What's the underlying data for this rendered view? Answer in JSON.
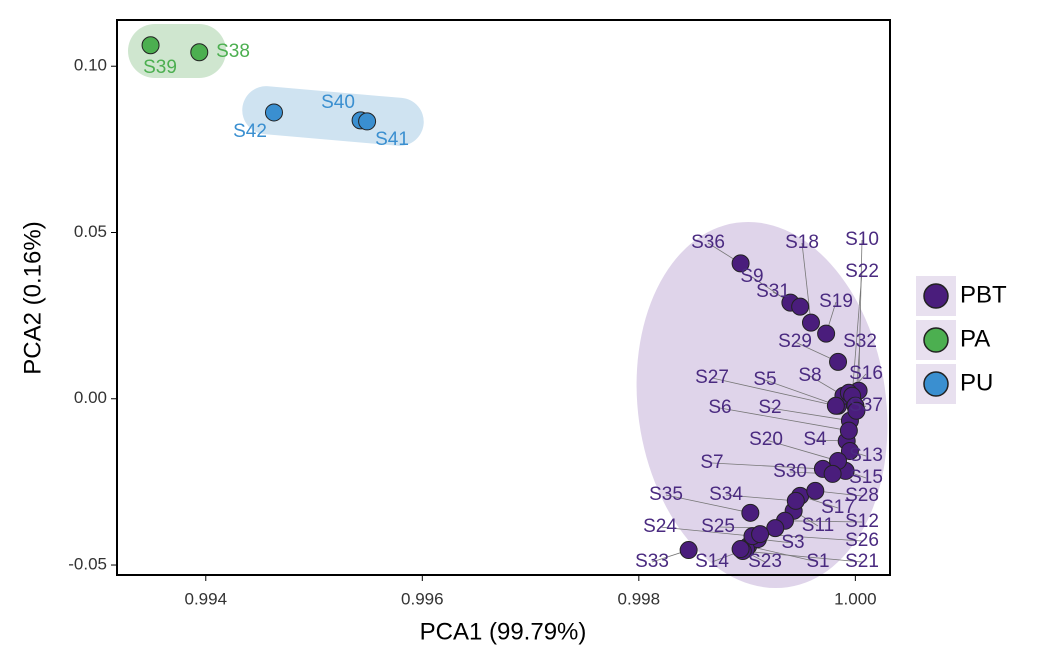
{
  "chart_data": {
    "type": "scatter",
    "x_label": "PCA1 (99.79%)",
    "y_label": "PCA2 (0.16%)",
    "xlim": [
      0.99318,
      1.00032
    ],
    "ylim": [
      -0.053,
      0.1139
    ],
    "xticks": [
      0.994,
      0.996,
      0.998,
      {
        "value": 1,
        "label": "1.000"
      }
    ],
    "yticks": [
      -0.05,
      {
        "value": 0,
        "label": "0.00"
      },
      0.05,
      {
        "value": 0.1,
        "label": "0.10"
      }
    ],
    "grid": false,
    "legend": "right",
    "series": [
      {
        "name": "PBT",
        "color": "#4a1d7c",
        "labels": [
          "S1",
          "S2",
          "S3",
          "S4",
          "S5",
          "S6",
          "S7",
          "S8",
          "S9",
          "S10",
          "S11",
          "S12",
          "S13",
          "S14",
          "S15",
          "S16",
          "S17",
          "S18",
          "S19",
          "S20",
          "S21",
          "S22",
          "S23",
          "S24",
          "S25",
          "S26",
          "S27",
          "S28",
          "S29",
          "S30",
          "S31",
          "S32",
          "S33",
          "S34",
          "S35",
          "S36",
          "S37"
        ],
        "x": [
          0.99901,
          0.99995,
          0.9991,
          0.99992,
          0.99984,
          0.99994,
          0.9997,
          0.99989,
          0.9994,
          1.00003,
          0.99943,
          0.99935,
          0.99995,
          0.99899,
          0.99991,
          0.99994,
          0.99949,
          0.99959,
          0.99973,
          0.99984,
          0.99896,
          0.99997,
          0.99894,
          0.99905,
          0.99926,
          0.99912,
          0.99982,
          0.99963,
          0.99984,
          0.99979,
          0.99949,
          1.0,
          0.99846,
          0.99945,
          0.99903,
          0.99894,
          1.00001
        ],
        "y": [
          -0.0443,
          -0.0066,
          -0.0422,
          -0.0127,
          -0.0021,
          -0.0096,
          -0.0211,
          0.0009,
          0.0289,
          0.0024,
          -0.0337,
          -0.0367,
          -0.0157,
          -0.0452,
          -0.0217,
          0.0018,
          -0.0292,
          0.0229,
          0.0196,
          -0.0187,
          -0.0458,
          0.0009,
          -0.0452,
          -0.0413,
          -0.0389,
          -0.0407,
          -0.0021,
          -0.0277,
          0.0111,
          -0.0226,
          0.0277,
          -0.0021,
          -0.0455,
          -0.0307,
          -0.0343,
          0.0407,
          -0.0036
        ]
      },
      {
        "name": "PA",
        "color": "#4caf50",
        "labels": [
          "S38",
          "S39"
        ],
        "x": [
          0.99394,
          0.99349
        ],
        "y": [
          0.1042,
          0.1063
        ]
      },
      {
        "name": "PU",
        "color": "#3a8fd0",
        "labels": [
          "S40",
          "S41",
          "S42"
        ],
        "x": [
          0.99543,
          0.99549,
          0.99463
        ],
        "y": [
          0.0837,
          0.0834,
          0.0861
        ]
      }
    ]
  }
}
